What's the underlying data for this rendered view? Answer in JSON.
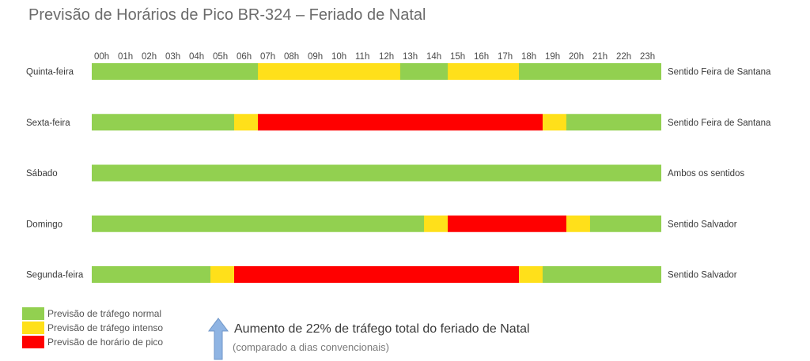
{
  "colors": {
    "normal": "#92d050",
    "intense": "#ffe01a",
    "peak": "#ff0000",
    "arrow": "#8fb4e3"
  },
  "chart_data": {
    "type": "timeline",
    "title": "Previsão de Horários de Pico BR-324 – Feriado de Natal",
    "hours": [
      "00h",
      "01h",
      "02h",
      "03h",
      "04h",
      "05h",
      "06h",
      "07h",
      "08h",
      "09h",
      "10h",
      "11h",
      "12h",
      "13h",
      "14h",
      "15h",
      "16h",
      "17h",
      "18h",
      "19h",
      "20h",
      "21h",
      "22h",
      "23h"
    ],
    "rows": [
      {
        "day": "Quinta-feira",
        "direction": "Sentido Feira de Santana",
        "segments": [
          {
            "start": 0,
            "end": 7,
            "level": "normal"
          },
          {
            "start": 7,
            "end": 13,
            "level": "intense"
          },
          {
            "start": 13,
            "end": 15,
            "level": "normal"
          },
          {
            "start": 15,
            "end": 18,
            "level": "intense"
          },
          {
            "start": 18,
            "end": 24,
            "level": "normal"
          }
        ]
      },
      {
        "day": "Sexta-feira",
        "direction": "Sentido Feira de Santana",
        "segments": [
          {
            "start": 0,
            "end": 6,
            "level": "normal"
          },
          {
            "start": 6,
            "end": 7,
            "level": "intense"
          },
          {
            "start": 7,
            "end": 19,
            "level": "peak"
          },
          {
            "start": 19,
            "end": 20,
            "level": "intense"
          },
          {
            "start": 20,
            "end": 24,
            "level": "normal"
          }
        ]
      },
      {
        "day": "Sábado",
        "direction": "Ambos os sentidos",
        "segments": [
          {
            "start": 0,
            "end": 24,
            "level": "normal"
          }
        ]
      },
      {
        "day": "Domingo",
        "direction": "Sentido Salvador",
        "segments": [
          {
            "start": 0,
            "end": 14,
            "level": "normal"
          },
          {
            "start": 14,
            "end": 15,
            "level": "intense"
          },
          {
            "start": 15,
            "end": 20,
            "level": "peak"
          },
          {
            "start": 20,
            "end": 21,
            "level": "intense"
          },
          {
            "start": 21,
            "end": 24,
            "level": "normal"
          }
        ]
      },
      {
        "day": "Segunda-feira",
        "direction": "Sentido Salvador",
        "segments": [
          {
            "start": 0,
            "end": 5,
            "level": "normal"
          },
          {
            "start": 5,
            "end": 6,
            "level": "intense"
          },
          {
            "start": 6,
            "end": 18,
            "level": "peak"
          },
          {
            "start": 18,
            "end": 19,
            "level": "intense"
          },
          {
            "start": 19,
            "end": 24,
            "level": "normal"
          }
        ]
      }
    ],
    "legend": [
      {
        "level": "normal",
        "label": "Previsão de tráfego normal"
      },
      {
        "level": "intense",
        "label": "Previsão de tráfego intenso"
      },
      {
        "level": "peak",
        "label": "Previsão de horário de pico"
      }
    ]
  },
  "note": {
    "main_prefix": "Aumento de 22%",
    "main_rest": " de tráfego total do feriado de Natal",
    "sub": "(comparado a dias convencionais)"
  }
}
